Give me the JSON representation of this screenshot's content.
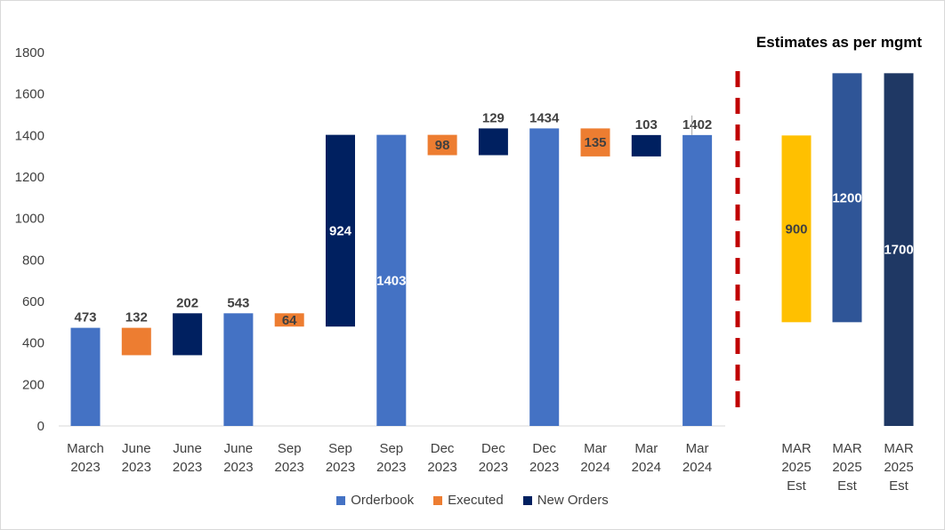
{
  "chart_data": {
    "type": "bar",
    "subtype": "waterfall",
    "annotation": "Estimates as per mgmt",
    "ylim": [
      0,
      1800
    ],
    "yticks": [
      0,
      200,
      400,
      600,
      800,
      1000,
      1200,
      1400,
      1600,
      1800
    ],
    "colors": {
      "orderbook": "#4472C4",
      "executed": "#ED7D31",
      "new_orders": "#002060",
      "est1": "#FFC000",
      "est2": "#2F5597",
      "est3": "#1F3864",
      "divider": "#C00000"
    },
    "legend": [
      {
        "label": "Orderbook",
        "key": "orderbook"
      },
      {
        "label": "Executed",
        "key": "executed"
      },
      {
        "label": "New Orders",
        "key": "new_orders"
      }
    ],
    "bars": [
      {
        "category": [
          "March",
          "2023"
        ],
        "series": "orderbook",
        "base": 0,
        "top": 473,
        "label": "473",
        "label_pos": "above"
      },
      {
        "category": [
          "June",
          "2023"
        ],
        "series": "executed",
        "base": 341,
        "top": 473,
        "label": "132",
        "label_pos": "above"
      },
      {
        "category": [
          "June",
          "2023"
        ],
        "series": "new_orders",
        "base": 341,
        "top": 543,
        "label": "202",
        "label_pos": "above"
      },
      {
        "category": [
          "June",
          "2023"
        ],
        "series": "orderbook",
        "base": 0,
        "top": 543,
        "label": "543",
        "label_pos": "above"
      },
      {
        "category": [
          "Sep",
          "2023"
        ],
        "series": "executed",
        "base": 479,
        "top": 543,
        "label": "64",
        "label_pos": "inside"
      },
      {
        "category": [
          "Sep",
          "2023"
        ],
        "series": "new_orders",
        "base": 479,
        "top": 1403,
        "label": "924",
        "label_pos": "inside"
      },
      {
        "category": [
          "Sep",
          "2023"
        ],
        "series": "orderbook",
        "base": 0,
        "top": 1403,
        "label": "1403",
        "label_pos": "inside"
      },
      {
        "category": [
          "Dec",
          "2023"
        ],
        "series": "executed",
        "base": 1305,
        "top": 1403,
        "label": "98",
        "label_pos": "inside"
      },
      {
        "category": [
          "Dec",
          "2023"
        ],
        "series": "new_orders",
        "base": 1305,
        "top": 1434,
        "label": "129",
        "label_pos": "above"
      },
      {
        "category": [
          "Dec",
          "2023"
        ],
        "series": "orderbook",
        "base": 0,
        "top": 1434,
        "label": "1434",
        "label_pos": "above"
      },
      {
        "category": [
          "Mar",
          "2024"
        ],
        "series": "executed",
        "base": 1299,
        "top": 1434,
        "label": "135",
        "label_pos": "inside"
      },
      {
        "category": [
          "Mar",
          "2024"
        ],
        "series": "new_orders",
        "base": 1299,
        "top": 1402,
        "label": "103",
        "label_pos": "above"
      },
      {
        "category": [
          "Mar",
          "2024"
        ],
        "series": "orderbook",
        "base": 0,
        "top": 1402,
        "label": "1402",
        "label_pos": "above"
      }
    ],
    "estimates": [
      {
        "category": [
          "MAR",
          "2025",
          "Est"
        ],
        "series": "est1",
        "base": 500,
        "top": 1400,
        "label": "900"
      },
      {
        "category": [
          "MAR",
          "2025",
          "Est"
        ],
        "series": "est2",
        "base": 500,
        "top": 1700,
        "label": "1200"
      },
      {
        "category": [
          "MAR",
          "2025",
          "Est"
        ],
        "series": "est3",
        "base": 0,
        "top": 1700,
        "label": "1700"
      }
    ]
  }
}
